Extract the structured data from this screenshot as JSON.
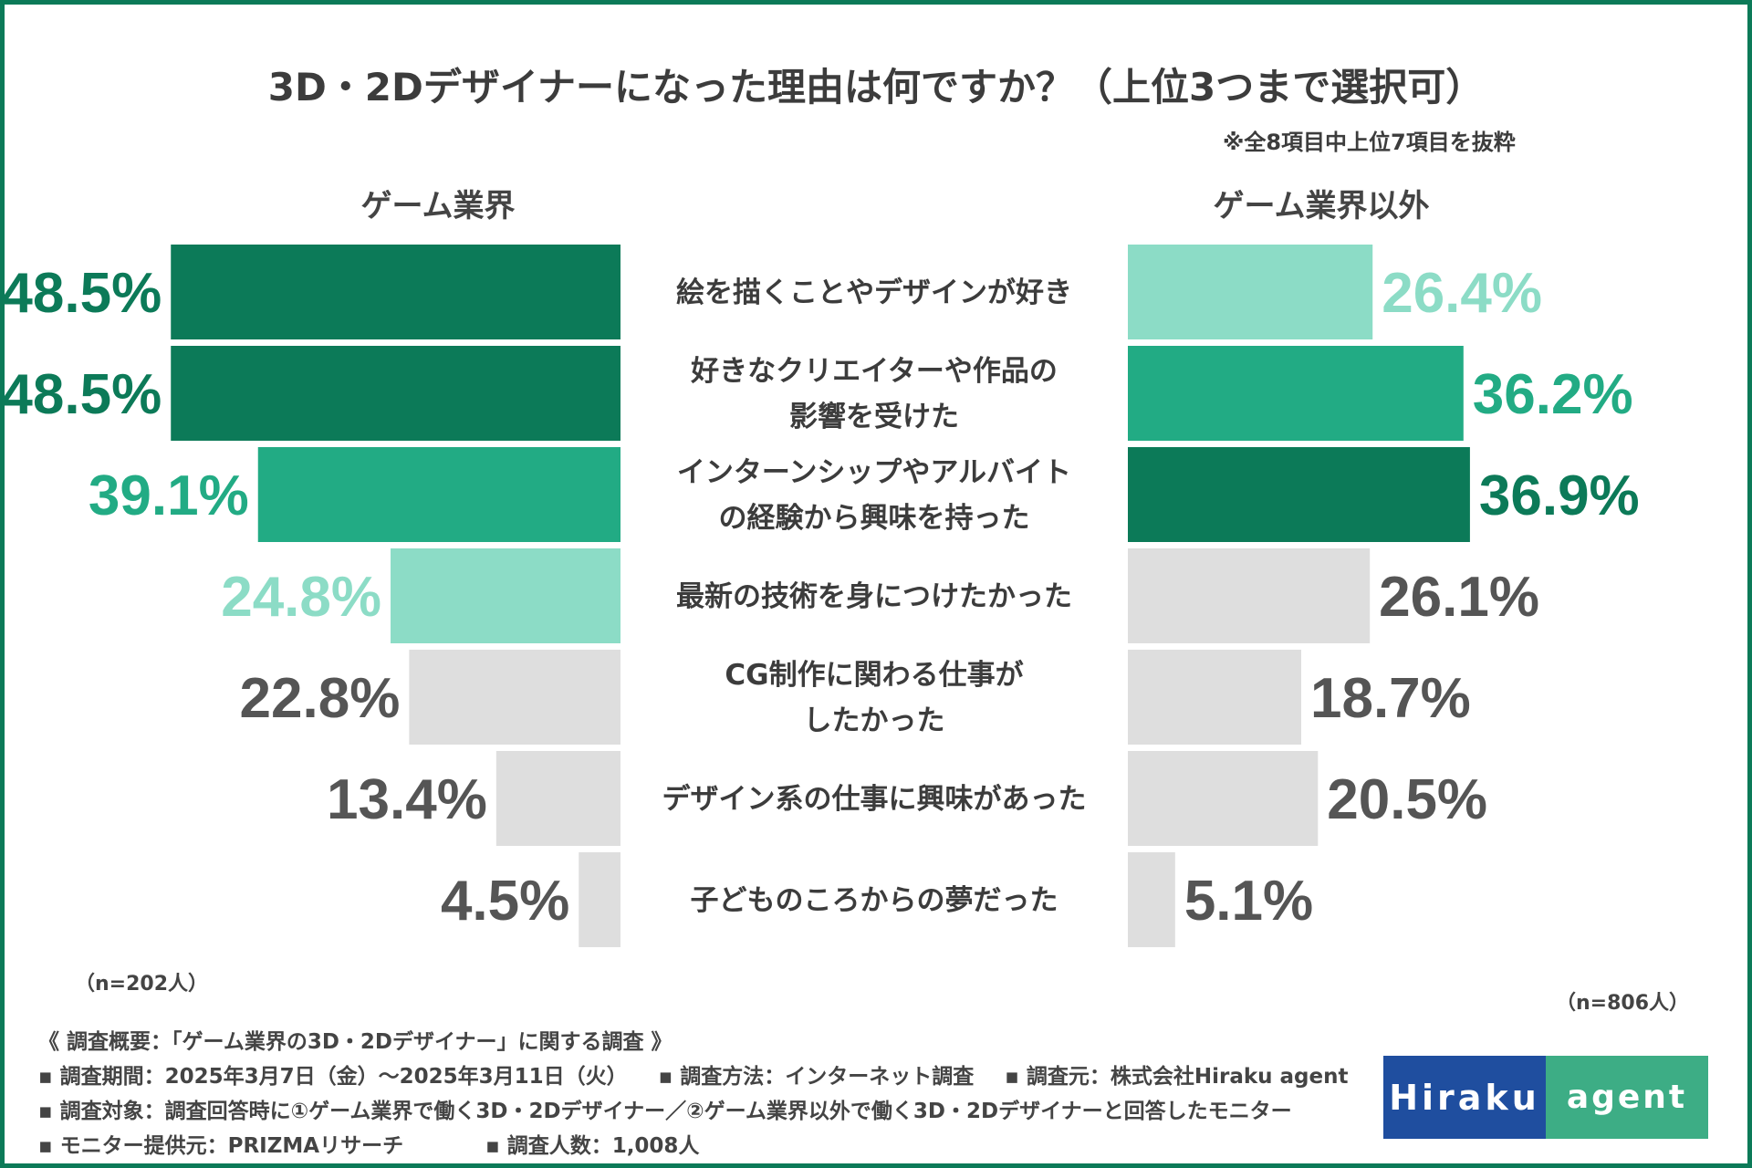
{
  "title": "3D・2Dデザイナーになった理由は何ですか？（上位3つまで選択可）",
  "note": "※全8項目中上位7項目を抜粋",
  "chart_data": {
    "type": "bar",
    "orientation": "horizontal-back-to-back",
    "unit": "%",
    "categories": [
      [
        "絵を描くことやデザインが好き"
      ],
      [
        "好きなクリエイターや作品の",
        "影響を受けた"
      ],
      [
        "インターンシップやアルバイト",
        "の経験から興味を持った"
      ],
      [
        "最新の技術を身につけたかった"
      ],
      [
        "CG制作に関わる仕事が",
        "したかった"
      ],
      [
        "デザイン系の仕事に興味があった"
      ],
      [
        "子どものころからの夢だった"
      ]
    ],
    "series": [
      {
        "name": "ゲーム業界",
        "values": [
          48.5,
          48.5,
          39.1,
          24.8,
          22.8,
          13.4,
          4.5
        ],
        "labels": [
          "48.5%",
          "48.5%",
          "39.1%",
          "24.8%",
          "22.8%",
          "13.4%",
          "4.5%"
        ],
        "rank": [
          1,
          1,
          2,
          3,
          0,
          0,
          0
        ],
        "n_label": "（n=202人）"
      },
      {
        "name": "ゲーム業界以外",
        "values": [
          26.4,
          36.2,
          36.9,
          26.1,
          18.7,
          20.5,
          5.1
        ],
        "labels": [
          "26.4%",
          "36.2%",
          "36.9%",
          "26.1%",
          "18.7%",
          "20.5%",
          "5.1%"
        ],
        "rank": [
          3,
          2,
          1,
          0,
          0,
          0,
          0
        ],
        "n_label": "（n=806人）"
      }
    ],
    "colors": {
      "rank1": "#0c7a58",
      "rank2": "#22ab84",
      "rank3": "#8cdcc6",
      "other_bar": "#dedede",
      "other_text": "#555555"
    },
    "xlim": [
      0,
      50
    ]
  },
  "footer": {
    "heading": "《 調査概要：「ゲーム業界の3D・2Dデザイナー」に関する調査 》",
    "period": "▪ 調査期間：2025年3月7日（金）～2025年3月11日（火）",
    "method": "▪ 調査方法：インターネット調査",
    "source": "▪ 調査元：株式会社Hiraku agent",
    "target": "▪ 調査対象：調査回答時に①ゲーム業界で働く3D・2Dデザイナー／②ゲーム業界以外で働く3D・2Dデザイナーと回答したモニター",
    "provider": "▪ モニター提供元：PRIZMAリサーチ",
    "count": "▪ 調査人数：1,008人"
  },
  "logo": {
    "left": "Hiraku",
    "right": "agent"
  }
}
